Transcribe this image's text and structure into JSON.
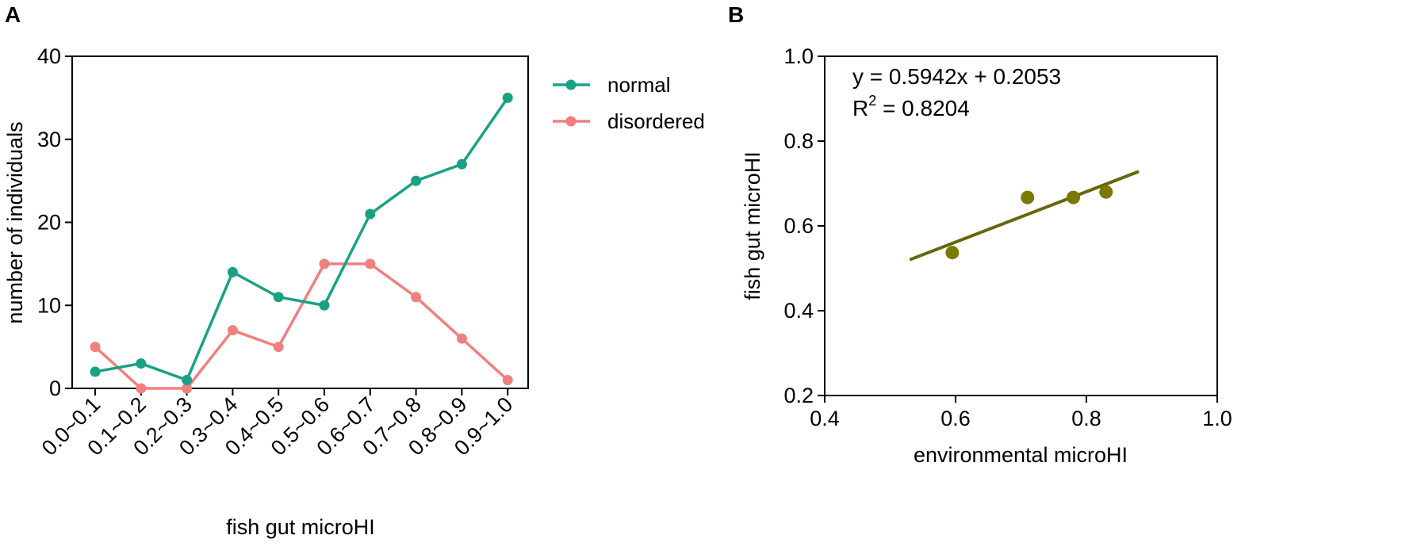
{
  "chart_data": [
    {
      "panel_label": "A",
      "type": "line",
      "xlabel": "fish gut microHI",
      "ylabel": "number of individuals",
      "ylim": [
        0,
        40
      ],
      "yticks": [
        "0",
        "10",
        "20",
        "30",
        "40"
      ],
      "categories": [
        "0.0~0.1",
        "0.1~0.2",
        "0.2~0.3",
        "0.3~0.4",
        "0.4~0.5",
        "0.5~0.6",
        "0.6~0.7",
        "0.7~0.8",
        "0.8~0.9",
        "0.9~1.0"
      ],
      "series": [
        {
          "name": "normal",
          "color": "#1aa184",
          "values": [
            2,
            3,
            1,
            14,
            11,
            10,
            21,
            25,
            27,
            35
          ]
        },
        {
          "name": "disordered",
          "color": "#f08080",
          "values": [
            5,
            0,
            0,
            7,
            5,
            15,
            15,
            11,
            6,
            1
          ]
        }
      ],
      "legend": "top-right"
    },
    {
      "panel_label": "B",
      "type": "scatter",
      "xlabel": "environmental microHI",
      "ylabel": "fish gut microHI",
      "xlim": [
        0.4,
        1.0
      ],
      "ylim": [
        0.2,
        1.0
      ],
      "xticks": [
        "0.4",
        "0.6",
        "0.8",
        "1.0"
      ],
      "yticks": [
        "0.2",
        "0.4",
        "0.6",
        "0.8",
        "1.0"
      ],
      "points": [
        {
          "x": 0.595,
          "y": 0.537
        },
        {
          "x": 0.71,
          "y": 0.667
        },
        {
          "x": 0.78,
          "y": 0.667
        },
        {
          "x": 0.83,
          "y": 0.68
        }
      ],
      "fit": {
        "slope": 0.5942,
        "intercept": 0.2053,
        "x_start": 0.53,
        "x_end": 0.88
      },
      "equation_text": "y = 0.5942x + 0.2053",
      "r2_prefix": "R",
      "r2_sup": "2",
      "r2_suffix": " = 0.8204",
      "color": "#7a7a00",
      "line_color": "#66660a"
    }
  ]
}
